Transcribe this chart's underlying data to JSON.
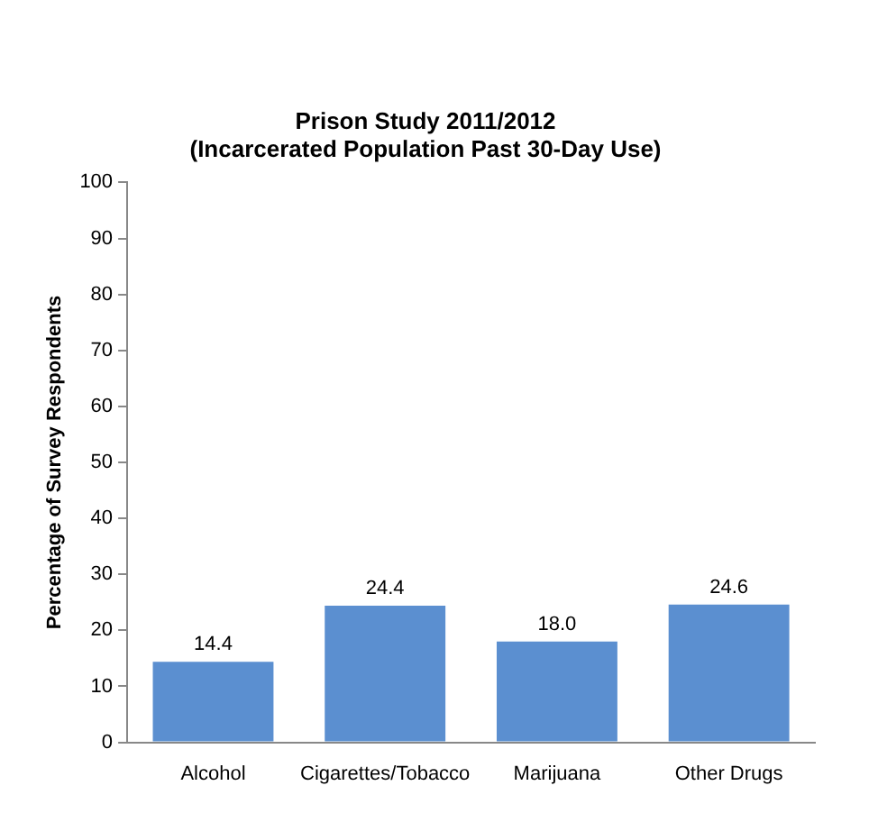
{
  "chart_data": {
    "type": "bar",
    "title": "Prison Study 2011/2012\n(Incarcerated Population Past 30-Day Use)",
    "ylabel": "Percentage of Survey Respondents",
    "categories": [
      "Alcohol",
      "Cigarettes/Tobacco",
      "Marijuana",
      "Other Drugs"
    ],
    "values": [
      14.4,
      24.4,
      18.0,
      24.6
    ],
    "value_labels": [
      "14.4",
      "24.4",
      "18.0",
      "24.6"
    ],
    "color": "#5b8fd0",
    "ylim": [
      0,
      100
    ],
    "yticks": [
      0,
      10,
      20,
      30,
      40,
      50,
      60,
      70,
      80,
      90,
      100
    ],
    "grid": false,
    "legend": false
  }
}
